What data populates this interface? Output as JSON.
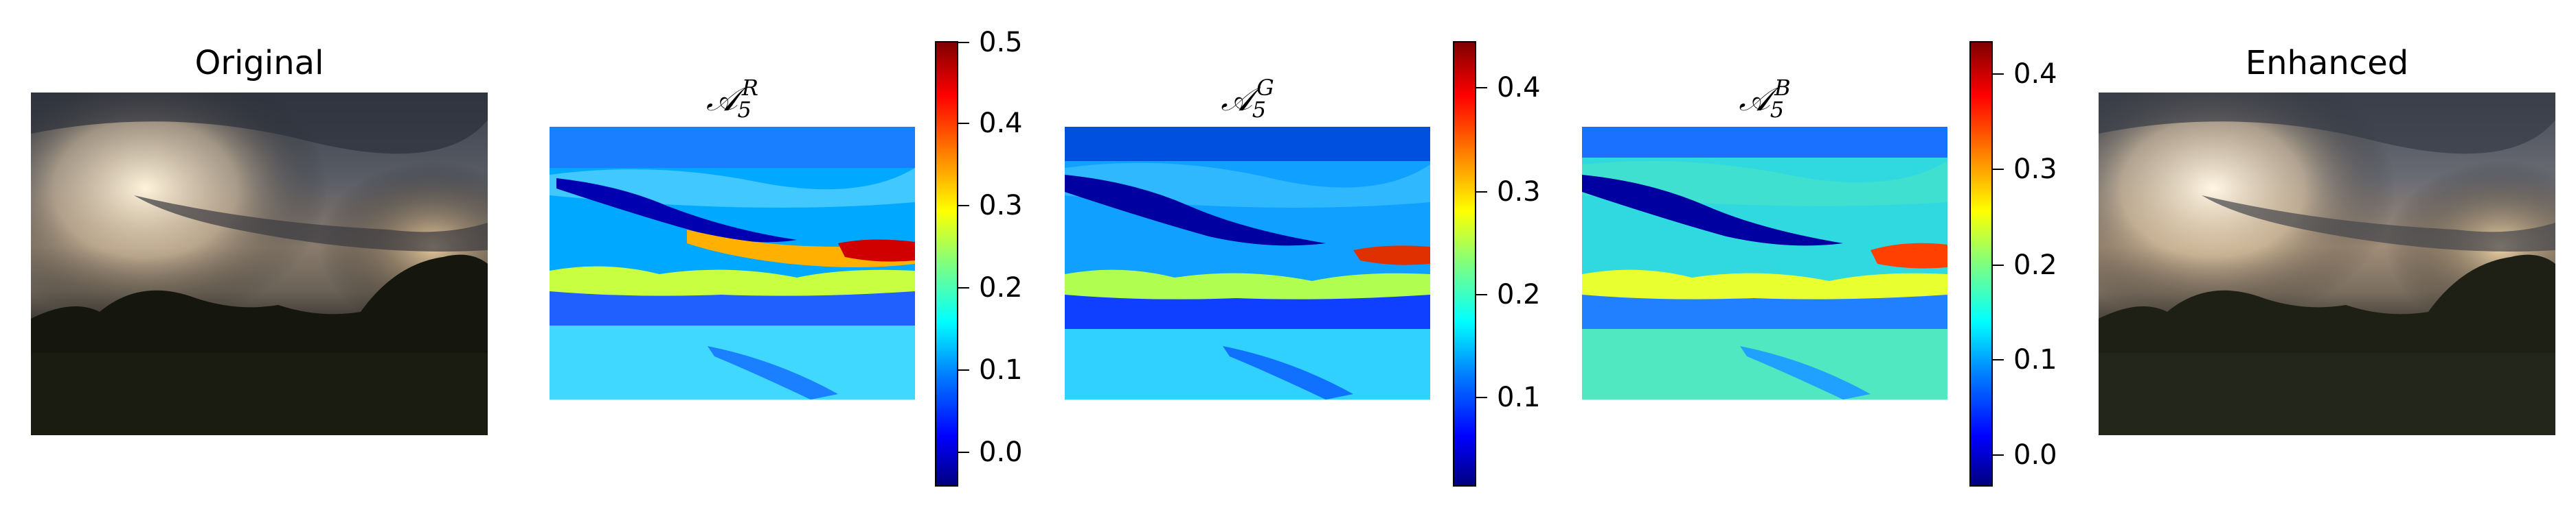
{
  "panels": {
    "original": {
      "title": "Original"
    },
    "red": {
      "title_main": "𝒜",
      "title_sub": "5",
      "title_sup": "R"
    },
    "green": {
      "title_main": "𝒜",
      "title_sub": "5",
      "title_sup": "G"
    },
    "blue": {
      "title_main": "𝒜",
      "title_sub": "5",
      "title_sup": "B"
    },
    "enhanced": {
      "title": "Enhanced"
    }
  },
  "colorbars": {
    "red": {
      "min": -0.04,
      "max": 0.5,
      "ticks": [
        "0.0",
        "0.1",
        "0.2",
        "0.3",
        "0.4",
        "0.5"
      ]
    },
    "green": {
      "min": 0.01,
      "max": 0.44,
      "ticks": [
        "0.1",
        "0.2",
        "0.3",
        "0.4"
      ]
    },
    "blue": {
      "min": -0.04,
      "max": 0.43,
      "ticks": [
        "0.0",
        "0.1",
        "0.2",
        "0.3",
        "0.4"
      ]
    }
  },
  "colors": {
    "colormap": "jet"
  }
}
